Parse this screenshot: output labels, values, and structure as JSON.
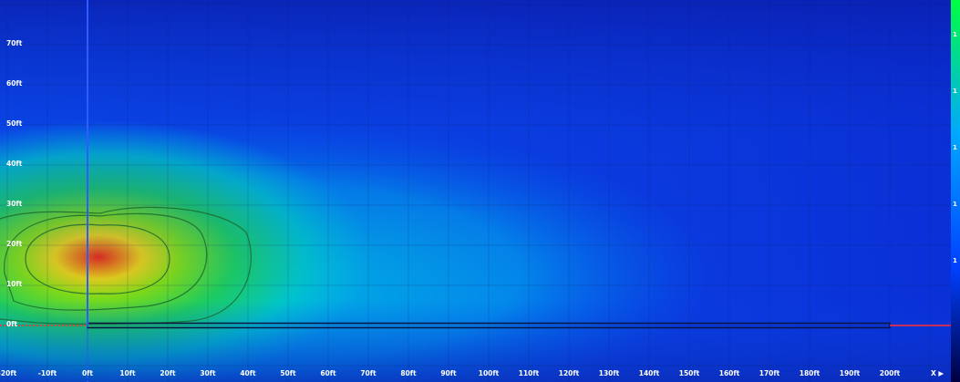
{
  "y_axis": {
    "labels": [
      "70ft",
      "60ft",
      "50ft",
      "40ft",
      "30ft",
      "20ft",
      "10ft",
      "0ft"
    ]
  },
  "x_axis": {
    "labels": [
      "-20ft",
      "-10ft",
      "0ft",
      "10ft",
      "20ft",
      "30ft",
      "40ft",
      "50ft",
      "60ft",
      "70ft",
      "80ft",
      "90ft",
      "100ft",
      "110ft",
      "120ft",
      "130ft",
      "140ft",
      "150ft",
      "160ft",
      "170ft",
      "180ft",
      "190ft",
      "200ft"
    ],
    "direction_label": "X ▶"
  },
  "color_scale": {
    "tick_labels": [
      "1",
      "1",
      "1",
      "1",
      "1"
    ]
  },
  "colors": {
    "hot_spot": "#ff2a00",
    "outer_field": "#0a3bd6",
    "axis_line": "#2f5cff",
    "marker_line": "#ff3030",
    "contour": "#1b6b2e"
  }
}
